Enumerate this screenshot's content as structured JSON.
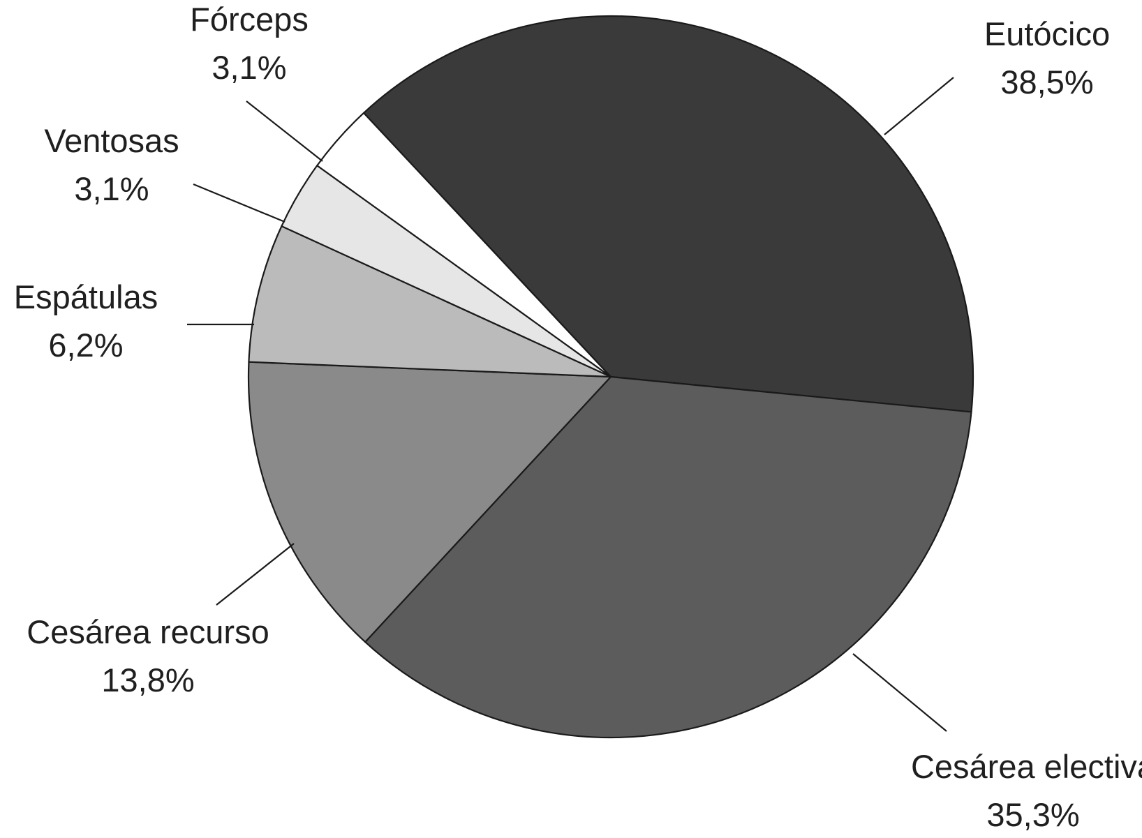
{
  "chart_data": {
    "type": "pie",
    "title": "",
    "slices": [
      {
        "label": "Eutócico",
        "value": 38.5,
        "value_label": "38,5%",
        "color": "#3a3a3a"
      },
      {
        "label": "Cesárea electiva",
        "value": 35.3,
        "value_label": "35,3%",
        "color": "#5c5c5c"
      },
      {
        "label": "Cesárea recurso",
        "value": 13.8,
        "value_label": "13,8%",
        "color": "#8a8a8a"
      },
      {
        "label": "Espátulas",
        "value": 6.2,
        "value_label": "6,2%",
        "color": "#bbbbbb"
      },
      {
        "label": "Ventosas",
        "value": 3.1,
        "value_label": "3,1%",
        "color": "#e6e6e6"
      },
      {
        "label": "Fórceps",
        "value": 3.1,
        "value_label": "3,1%",
        "color": "#ffffff"
      }
    ]
  }
}
